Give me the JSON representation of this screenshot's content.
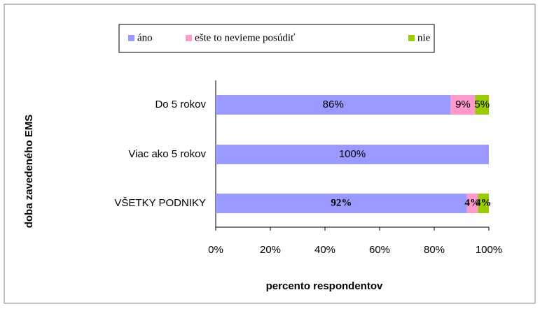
{
  "chart_data": {
    "type": "stacked_barh",
    "categories": [
      "Do 5 rokov",
      "Viac ako 5 rokov",
      "VŠETKY PODNIKY"
    ],
    "series": [
      {
        "name": "áno",
        "color": "#9999ff",
        "values": [
          86,
          100,
          92
        ],
        "value_labels": [
          "86%",
          "100%",
          "92%"
        ]
      },
      {
        "name": "ešte to nevieme posúdiť",
        "color": "#ff99cc",
        "values": [
          9,
          0,
          4
        ],
        "value_labels": [
          "9%",
          null,
          "4%"
        ]
      },
      {
        "name": "nie",
        "color": "#99cc00",
        "values": [
          5,
          0,
          4
        ],
        "value_labels": [
          "5%",
          null,
          "4%"
        ]
      }
    ],
    "xlim": [
      0,
      100
    ],
    "xticks": [
      {
        "value": 0,
        "label": "0%"
      },
      {
        "value": 20,
        "label": "20%"
      },
      {
        "value": 40,
        "label": "40%"
      },
      {
        "value": 60,
        "label": "60%"
      },
      {
        "value": 80,
        "label": "80%"
      },
      {
        "value": 100,
        "label": "100%"
      }
    ],
    "x_label": "percento respondentov",
    "y_label": "doba zavedeného EMS",
    "legend": "top"
  }
}
